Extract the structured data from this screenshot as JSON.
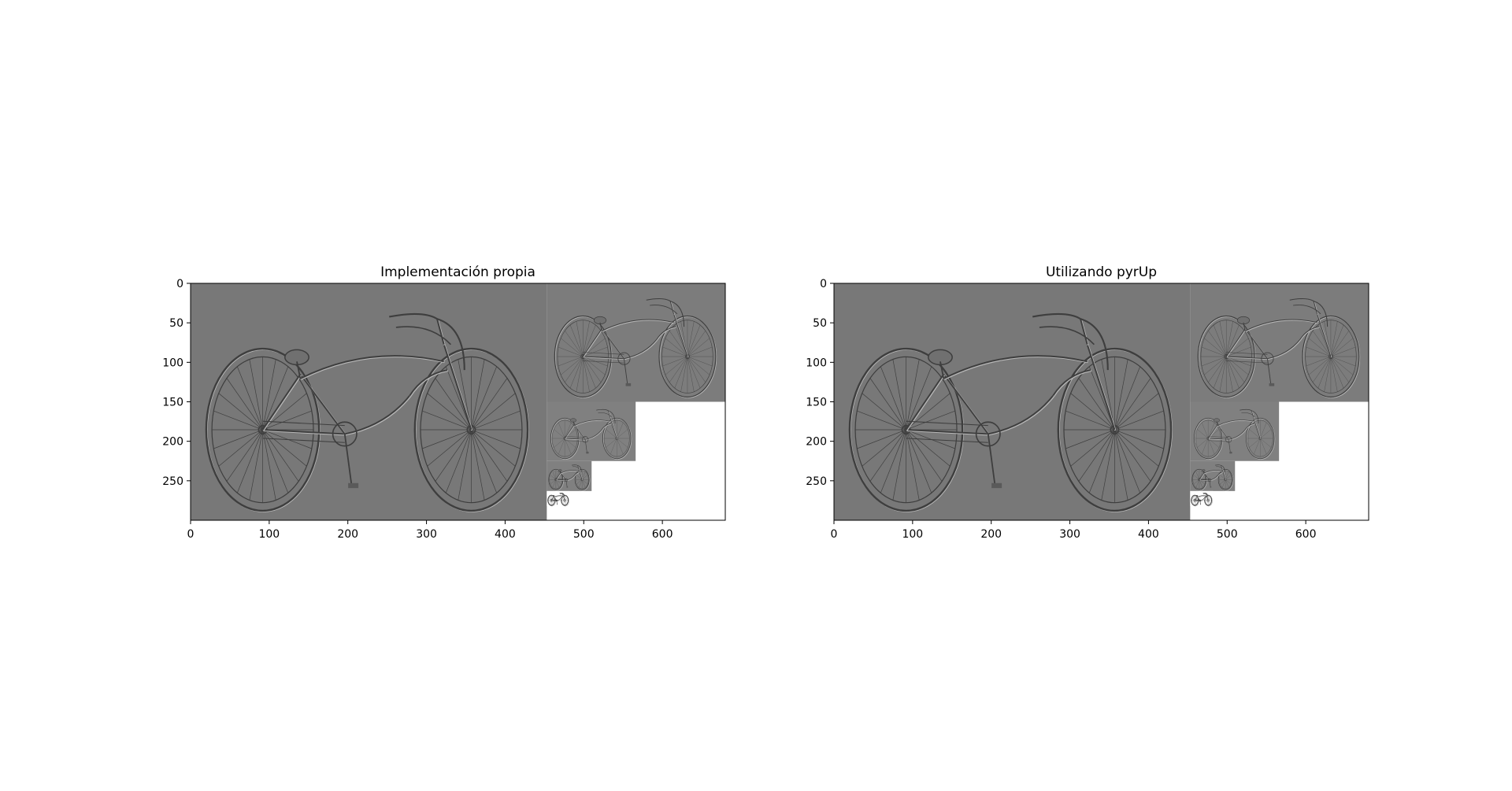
{
  "figure": {
    "background": "#ffffff",
    "image_gray": "#7a7a7a",
    "axes_color": "#000000"
  },
  "chart_data": [
    {
      "type": "image",
      "title": "Implementación propia",
      "xlabel": "",
      "ylabel": "",
      "xlim": [
        0,
        680
      ],
      "ylim": [
        300,
        0
      ],
      "x_ticks": [
        0,
        100,
        200,
        300,
        400,
        500,
        600
      ],
      "y_ticks": [
        0,
        50,
        100,
        150,
        200,
        250
      ],
      "grid": false,
      "content": "Laplacian pyramid mosaic of a cruiser bicycle image",
      "pyramid_levels": [
        {
          "x0": 0,
          "y0": 0,
          "x1": 453,
          "y1": 300
        },
        {
          "x0": 453,
          "y0": 0,
          "x1": 680,
          "y1": 150
        },
        {
          "x0": 453,
          "y0": 150,
          "x1": 566,
          "y1": 225
        },
        {
          "x0": 453,
          "y0": 225,
          "x1": 510,
          "y1": 263
        },
        {
          "x0": 453,
          "y0": 263,
          "x1": 482,
          "y1": 282
        }
      ],
      "empty_region_color": "#ffffff"
    },
    {
      "type": "image",
      "title": "Utilizando pyrUp",
      "xlabel": "",
      "ylabel": "",
      "xlim": [
        0,
        680
      ],
      "ylim": [
        300,
        0
      ],
      "x_ticks": [
        0,
        100,
        200,
        300,
        400,
        500,
        600
      ],
      "y_ticks": [
        0,
        50,
        100,
        150,
        200,
        250
      ],
      "grid": false,
      "content": "Laplacian pyramid mosaic of a cruiser bicycle image",
      "pyramid_levels": [
        {
          "x0": 0,
          "y0": 0,
          "x1": 453,
          "y1": 300
        },
        {
          "x0": 453,
          "y0": 0,
          "x1": 680,
          "y1": 150
        },
        {
          "x0": 453,
          "y0": 150,
          "x1": 566,
          "y1": 225
        },
        {
          "x0": 453,
          "y0": 225,
          "x1": 510,
          "y1": 263
        },
        {
          "x0": 453,
          "y0": 263,
          "x1": 482,
          "y1": 282
        }
      ],
      "empty_region_color": "#ffffff"
    }
  ]
}
